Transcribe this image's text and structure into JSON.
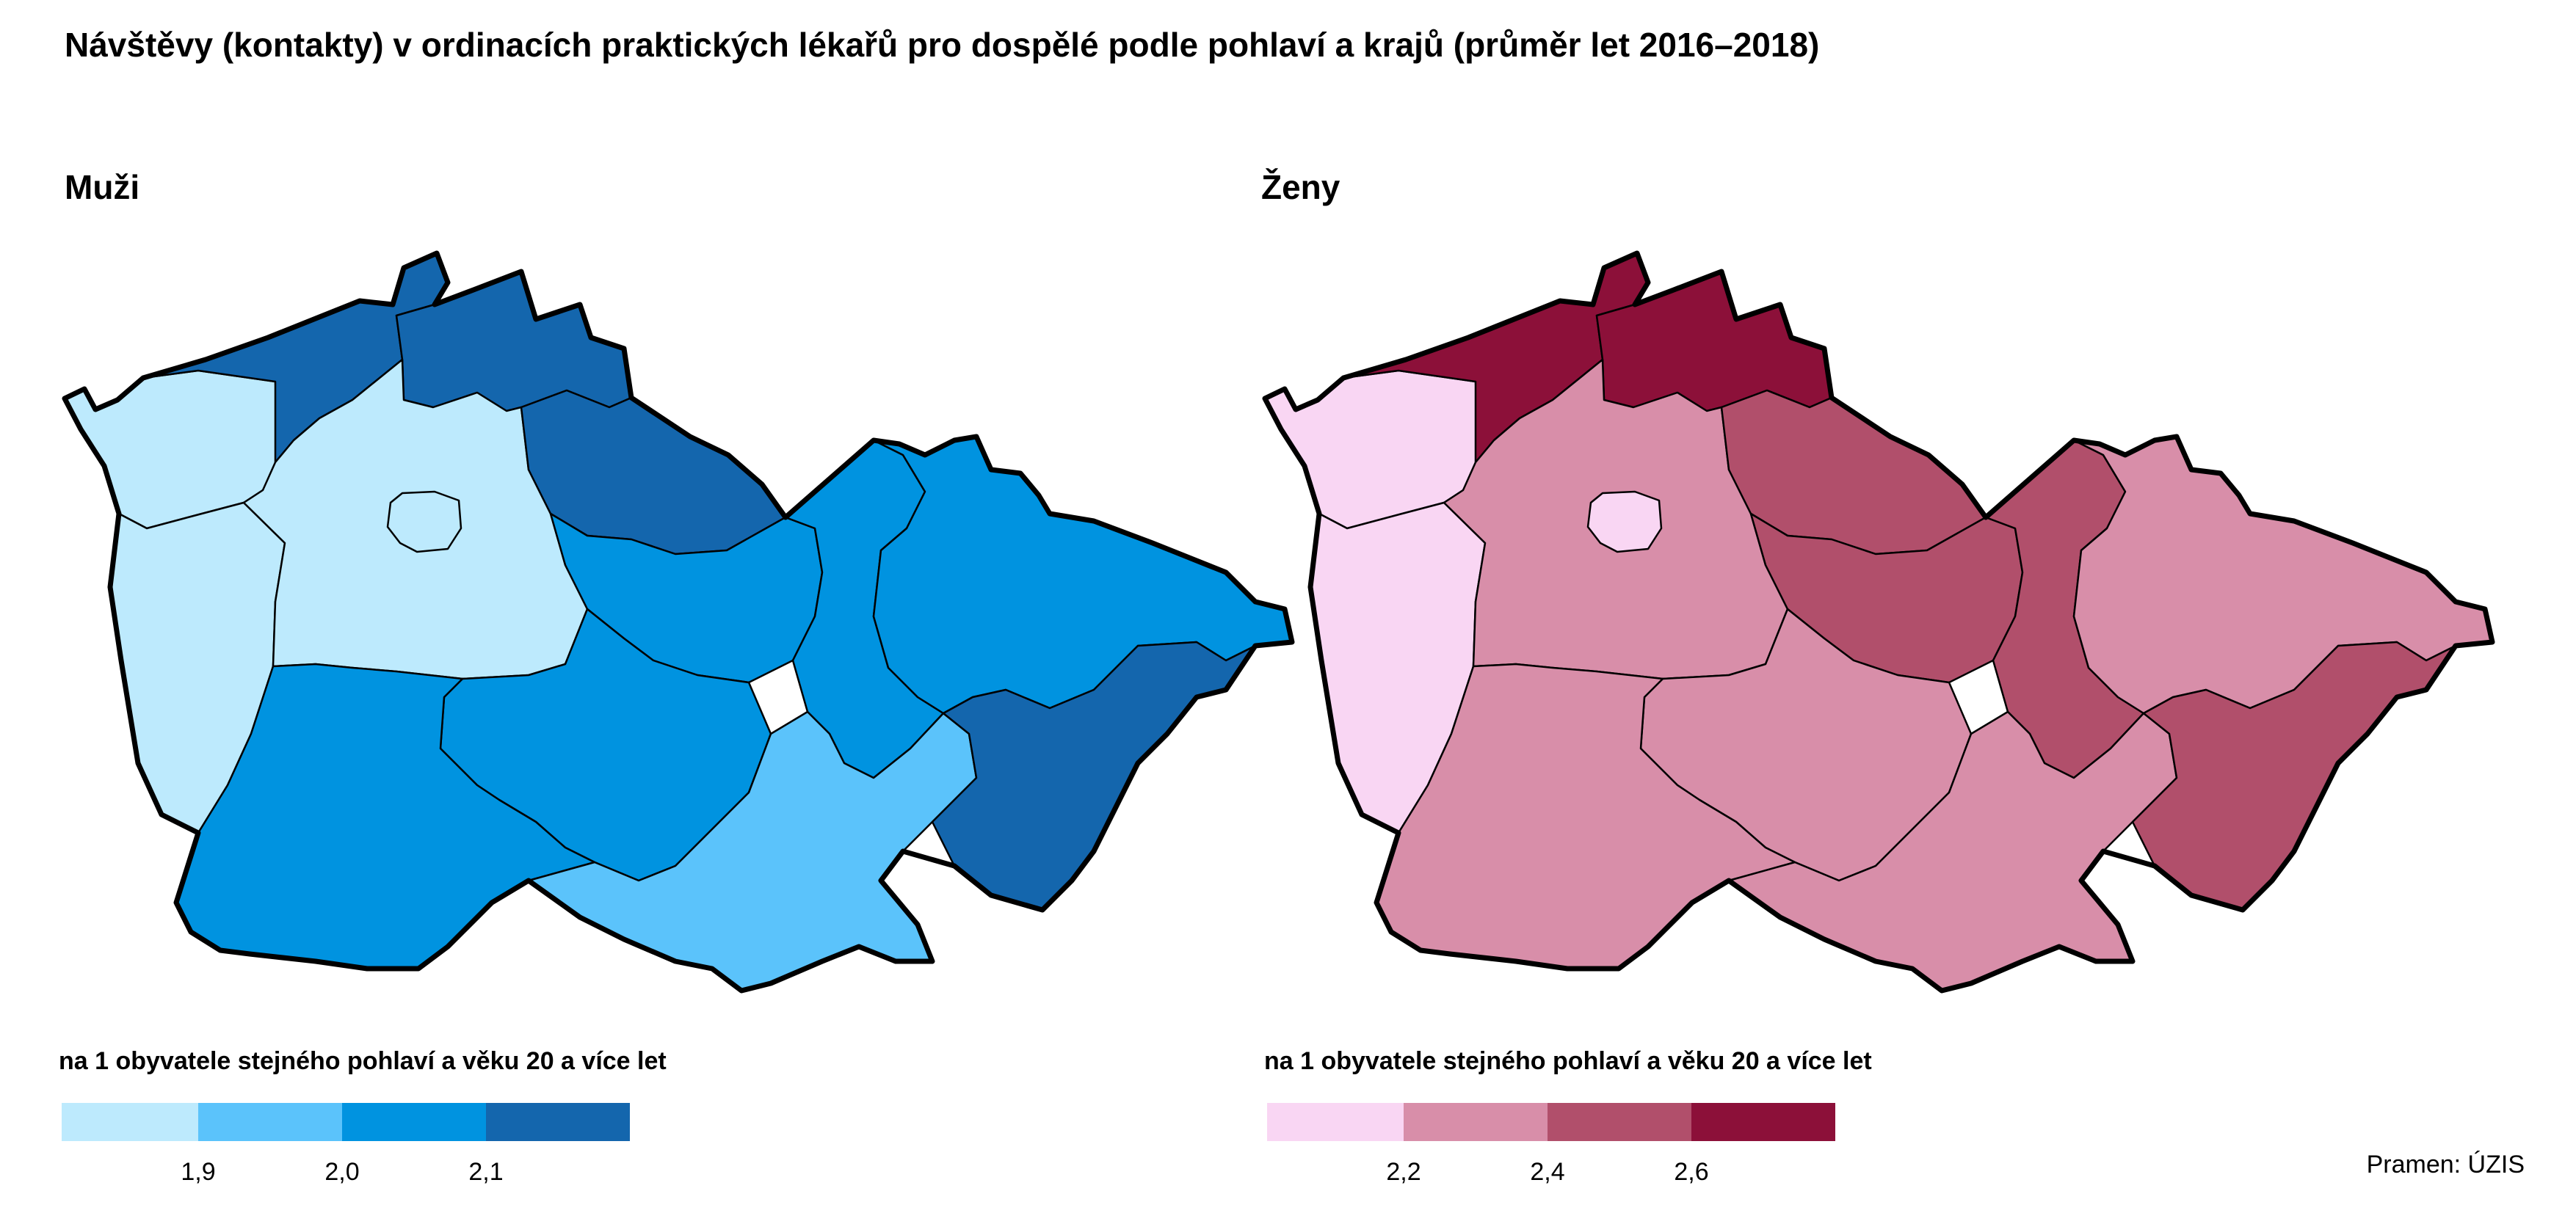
{
  "title": "Návštěvy (kontakty) v ordinacích praktických lékařů pro dospělé podle pohlaví a krajů (průměr let 2016–2018)",
  "panels": [
    {
      "title": "Muži",
      "legend_caption": "na 1 obyvatele stejného pohlaví a věku 20 a více let",
      "legend_classes": [
        "#bdeafd",
        "#5bc3fb",
        "#0093e0",
        "#1466ad"
      ],
      "legend_ticks": [
        "1,9",
        "2,0",
        "2,1"
      ],
      "regions": {
        "karlovarsky": 0,
        "plzensky": 0,
        "stredocesky": 0,
        "praha": 0,
        "ustecky": 3,
        "liberecky": 3,
        "kralovehradecky": 3,
        "zlinsky": 3,
        "pardubicky": 2,
        "vysocina": 2,
        "jihocesky": 2,
        "olomoucky": 2,
        "moravskoslezsky": 2,
        "jihomoravsky": 1
      }
    },
    {
      "title": "Ženy",
      "legend_caption": "na 1 obyvatele stejného pohlaví a věku 20 a více let",
      "legend_classes": [
        "#f9d6f3",
        "#d88ea9",
        "#b14f6b",
        "#8c1039"
      ],
      "legend_ticks": [
        "2,2",
        "2,4",
        "2,6"
      ],
      "regions": {
        "karlovarsky": 0,
        "plzensky": 0,
        "praha": 0,
        "ustecky": 3,
        "liberecky": 3,
        "kralovehradecky": 2,
        "pardubicky": 2,
        "olomoucky": 2,
        "zlinsky": 2,
        "stredocesky": 1,
        "vysocina": 1,
        "jihocesky": 1,
        "jihomoravsky": 1,
        "moravskoslezsky": 1
      }
    }
  ],
  "source": "Pramen: ÚZIS"
}
